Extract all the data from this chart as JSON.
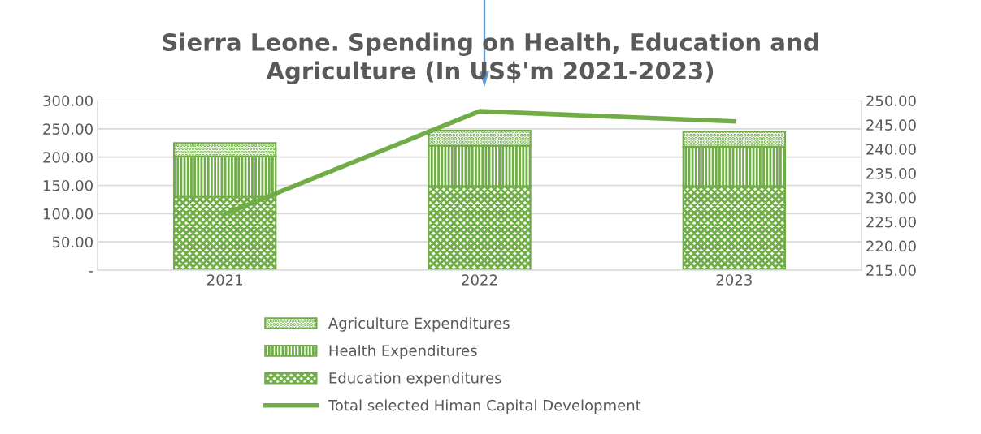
{
  "chart_data": {
    "type": "bar",
    "title": "Sierra Leone. Spending on Health, Education and\nAgriculture (In US$'m 2021-2023)",
    "categories": [
      "2021",
      "2022",
      "2023"
    ],
    "stacked": true,
    "series": [
      {
        "name": "Education expenditures",
        "color": "#70ad47",
        "values": [
          131,
          149,
          149
        ]
      },
      {
        "name": "Health Expenditures",
        "color": "#70ad47",
        "values": [
          70,
          71,
          69
        ]
      },
      {
        "name": "Agriculture Expenditures",
        "color": "#70ad47",
        "values": [
          24,
          27,
          27
        ]
      },
      {
        "name": "Total selected Himan Capital Development",
        "type": "line",
        "axis": "y2",
        "color": "#70ad47",
        "values": [
          226.6,
          247.8,
          245.7
        ]
      }
    ],
    "ylim": [
      0,
      300
    ],
    "yticks": [
      {
        "value": 0,
        "label": "-"
      },
      {
        "value": 50,
        "label": "50.00"
      },
      {
        "value": 100,
        "label": "100.00"
      },
      {
        "value": 150,
        "label": "150.00"
      },
      {
        "value": 200,
        "label": "200.00"
      },
      {
        "value": 250,
        "label": "250.00"
      },
      {
        "value": 300,
        "label": "300.00"
      }
    ],
    "y2lim": [
      215,
      250
    ],
    "y2ticks": [
      {
        "value": 215,
        "label": "215.00"
      },
      {
        "value": 220,
        "label": "220.00"
      },
      {
        "value": 225,
        "label": "225.00"
      },
      {
        "value": 230,
        "label": "230.00"
      },
      {
        "value": 235,
        "label": "235.00"
      },
      {
        "value": 240,
        "label": "240.00"
      },
      {
        "value": 245,
        "label": "245.00"
      },
      {
        "value": 250,
        "label": "250.00"
      }
    ],
    "grid": "y",
    "legend": "bottom"
  }
}
